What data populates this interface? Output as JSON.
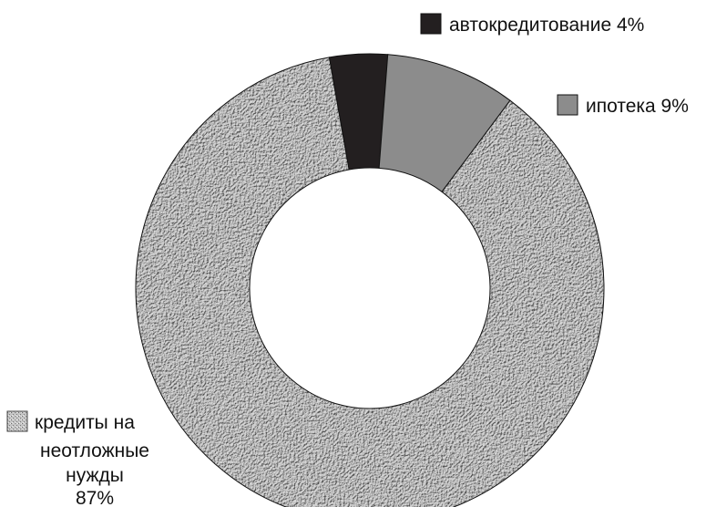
{
  "chart_data": {
    "type": "pie",
    "variant": "donut",
    "legend_placement": "labels next to slices",
    "slices": [
      {
        "label": "автокредитование 4%",
        "value": 4,
        "color": "#231f20",
        "fill": "solid"
      },
      {
        "label": "ипотека 9%",
        "value": 9,
        "color": "#8c8c8c",
        "fill": "solid"
      },
      {
        "label_lines": [
          "кредиты на",
          "неотложные",
          "нужды",
          "87%"
        ],
        "value": 87,
        "color": "#b4b4b4",
        "fill": "textured"
      }
    ]
  }
}
